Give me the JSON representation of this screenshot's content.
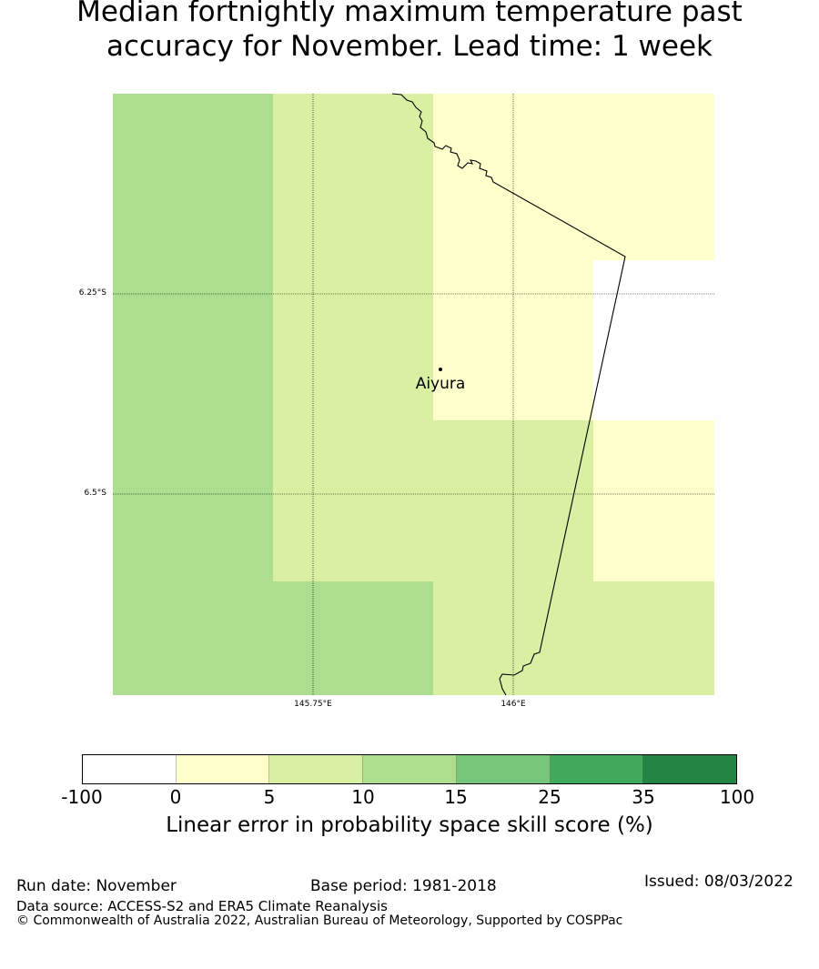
{
  "title": {
    "line1": "Median fortnightly maximum temperature past",
    "line2": "accuracy for November. Lead time: 1 week"
  },
  "map": {
    "latitude_labels": [
      "6.25°S",
      "6.5°S"
    ],
    "longitude_labels": [
      "145.75°E",
      "146°E"
    ],
    "place": {
      "name": "Aiyura"
    },
    "grid_cells": [
      {
        "row": 0,
        "col": 0,
        "category": "10-15"
      },
      {
        "row": 0,
        "col": 1,
        "category": "5-10"
      },
      {
        "row": 0,
        "col": 2,
        "category": "0-5"
      },
      {
        "row": 0,
        "col": 3,
        "category": "0-5"
      },
      {
        "row": 1,
        "col": 0,
        "category": "10-15"
      },
      {
        "row": 1,
        "col": 1,
        "category": "5-10"
      },
      {
        "row": 1,
        "col": 2,
        "category": "0-5"
      },
      {
        "row": 1,
        "col": 3,
        "category": "-100-0"
      },
      {
        "row": 2,
        "col": 0,
        "category": "10-15"
      },
      {
        "row": 2,
        "col": 1,
        "category": "5-10"
      },
      {
        "row": 2,
        "col": 2,
        "category": "5-10"
      },
      {
        "row": 2,
        "col": 3,
        "category": "0-5"
      },
      {
        "row": 3,
        "col": 0,
        "category": "10-15"
      },
      {
        "row": 3,
        "col": 1,
        "category": "10-15"
      },
      {
        "row": 3,
        "col": 2,
        "category": "5-10"
      },
      {
        "row": 3,
        "col": 3,
        "category": "5-10"
      }
    ]
  },
  "colorbar": {
    "ticks": [
      "-100",
      "0",
      "5",
      "10",
      "15",
      "25",
      "35",
      "100"
    ],
    "colors": [
      "#ffffff",
      "#ffffcc",
      "#d9f0a3",
      "#addd8e",
      "#78c679",
      "#41ab5d",
      "#238443"
    ],
    "label": "Linear error in probability space skill score (%)"
  },
  "footer": {
    "run_date": "Run date: November",
    "base_period": "Base period: 1981-2018",
    "issued": "Issued: 08/03/2022",
    "data_source": "Data source: ACCESS-S2 and ERA5 Climate Reanalysis",
    "copyright": "© Commonwealth of Australia 2022, Australian Bureau of Meteorology, Supported by COSPPac"
  }
}
